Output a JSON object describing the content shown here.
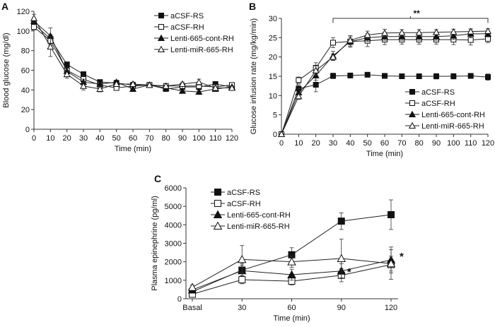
{
  "chart_data": [
    {
      "panel_label": "A",
      "type": "line",
      "xlabel": "Time (min)",
      "ylabel": "Blood glucose (mg/dl)",
      "x": [
        0,
        10,
        20,
        30,
        40,
        50,
        60,
        70,
        80,
        90,
        100,
        110,
        120
      ],
      "x_ticks": [
        "0",
        "10",
        "20",
        "30",
        "40",
        "50",
        "60",
        "70",
        "80",
        "90",
        "100",
        "110",
        "120"
      ],
      "ylim": [
        0,
        120
      ],
      "y_ticks": [
        "0",
        "20",
        "40",
        "60",
        "80",
        "100",
        "120"
      ],
      "legend_position": "top-right",
      "series": [
        {
          "name": "aCSF-RS",
          "marker": "filled-square",
          "values": [
            107,
            92,
            66,
            56,
            48,
            47,
            45,
            45,
            41,
            43,
            43,
            46,
            43
          ],
          "errors": [
            3,
            4,
            2,
            2,
            2,
            2,
            2,
            1,
            1,
            2,
            2,
            2,
            1
          ]
        },
        {
          "name": "aCSF-RH",
          "marker": "open-square",
          "values": [
            104,
            90,
            60,
            51,
            45,
            42,
            44,
            45,
            44,
            44,
            44,
            43,
            45
          ],
          "errors": [
            3,
            5,
            3,
            3,
            2,
            2,
            2,
            1,
            1,
            2,
            3,
            2,
            1
          ]
        },
        {
          "name": "Lenti-665-cont-RH",
          "marker": "filled-triangle",
          "values": [
            110,
            95,
            59,
            48,
            46,
            48,
            41,
            45,
            42,
            39,
            38,
            41,
            43
          ],
          "errors": [
            3,
            8,
            3,
            3,
            2,
            2,
            2,
            1,
            1,
            2,
            2,
            2,
            1
          ]
        },
        {
          "name": "Lenti-miR-665-RH",
          "marker": "open-triangle",
          "values": [
            113,
            84,
            56,
            44,
            41,
            46,
            46,
            45,
            44,
            46,
            48,
            42,
            42
          ],
          "errors": [
            4,
            10,
            4,
            4,
            3,
            2,
            2,
            1,
            1,
            2,
            3,
            2,
            1
          ]
        }
      ]
    },
    {
      "panel_label": "B",
      "type": "line",
      "xlabel": "Time (min)",
      "ylabel": "Glucose infusion rate (mg/kg/min)",
      "x": [
        0,
        10,
        20,
        30,
        40,
        50,
        60,
        70,
        80,
        90,
        100,
        110,
        120
      ],
      "x_ticks": [
        "0",
        "10",
        "20",
        "30",
        "40",
        "50",
        "60",
        "70",
        "80",
        "90",
        "100",
        "110",
        "120"
      ],
      "ylim": [
        0,
        30
      ],
      "y_ticks": [
        "0",
        "5",
        "10",
        "15",
        "20",
        "25",
        "30"
      ],
      "legend_position": "bottom-right",
      "annotation": "**",
      "annotation_range": [
        30,
        120
      ],
      "series": [
        {
          "name": "aCSF-RS",
          "marker": "filled-square",
          "values": [
            0,
            11.8,
            12.8,
            15.1,
            15.2,
            15.4,
            15.1,
            15,
            15,
            15,
            15,
            15.1,
            14.8
          ],
          "errors": [
            0,
            1,
            1.8,
            0.7,
            0.6,
            0.6,
            0.5,
            0.5,
            0.6,
            0.7,
            0.7,
            0.6,
            0.8
          ]
        },
        {
          "name": "aCSF-RH",
          "marker": "open-square",
          "values": [
            0,
            14,
            17.2,
            23.7,
            24,
            24.2,
            24.5,
            24.5,
            24.5,
            24.5,
            24.5,
            24.4,
            24.7
          ],
          "errors": [
            0,
            0.8,
            1.3,
            1.3,
            1.5,
            1.5,
            1.3,
            1.2,
            1.2,
            1.2,
            1.3,
            1.3,
            1
          ]
        },
        {
          "name": "Lenti-665-cont-RH",
          "marker": "filled-triangle",
          "values": [
            0,
            10.8,
            15.2,
            20.3,
            24,
            25,
            25.3,
            25.3,
            25.3,
            25.3,
            25.5,
            26,
            26
          ],
          "errors": [
            0,
            1,
            1.2,
            1.2,
            1.2,
            1,
            1,
            1,
            1,
            1,
            1,
            1,
            0.8
          ]
        },
        {
          "name": "Lenti-miR-665-RH",
          "marker": "open-triangle",
          "values": [
            0,
            9.8,
            16.5,
            20,
            24.3,
            25.7,
            26.2,
            26.3,
            26.3,
            26.4,
            26.5,
            26.6,
            26.7
          ],
          "errors": [
            0,
            0.8,
            1.2,
            0.8,
            1.2,
            1,
            1,
            0.8,
            0.8,
            0.7,
            0.7,
            0.7,
            0.6
          ]
        }
      ]
    },
    {
      "panel_label": "C",
      "type": "line",
      "xlabel": "Time (min)",
      "ylabel": "Plasma epinephrine (pg/ml)",
      "categories": [
        "Basal",
        "30",
        "60",
        "90",
        "120"
      ],
      "ylim": [
        0,
        6000
      ],
      "y_ticks": [
        "0",
        "1000",
        "2000",
        "3000",
        "4000",
        "5000",
        "6000"
      ],
      "legend_position": "top-left",
      "annotations": [
        {
          "text": "*",
          "at": "90"
        },
        {
          "text": "*",
          "at": "120"
        }
      ],
      "series": [
        {
          "name": "aCSF-RS",
          "marker": "filled-square",
          "values": [
            380,
            1550,
            2380,
            4200,
            4550
          ],
          "errors": [
            150,
            350,
            380,
            450,
            800
          ]
        },
        {
          "name": "aCSF-RH",
          "marker": "open-square",
          "values": [
            250,
            1030,
            950,
            1270,
            1850
          ],
          "errors": [
            80,
            220,
            200,
            350,
            800
          ]
        },
        {
          "name": "Lenti-665-cont-RH",
          "marker": "filled-triangle",
          "values": [
            480,
            1520,
            1300,
            1500,
            2100
          ],
          "errors": [
            100,
            300,
            300,
            400,
            700
          ]
        },
        {
          "name": "Lenti-miR-665-RH",
          "marker": "open-triangle",
          "values": [
            620,
            2130,
            2000,
            2180,
            1900
          ],
          "errors": [
            120,
            750,
            300,
            1050,
            400
          ]
        }
      ]
    }
  ]
}
